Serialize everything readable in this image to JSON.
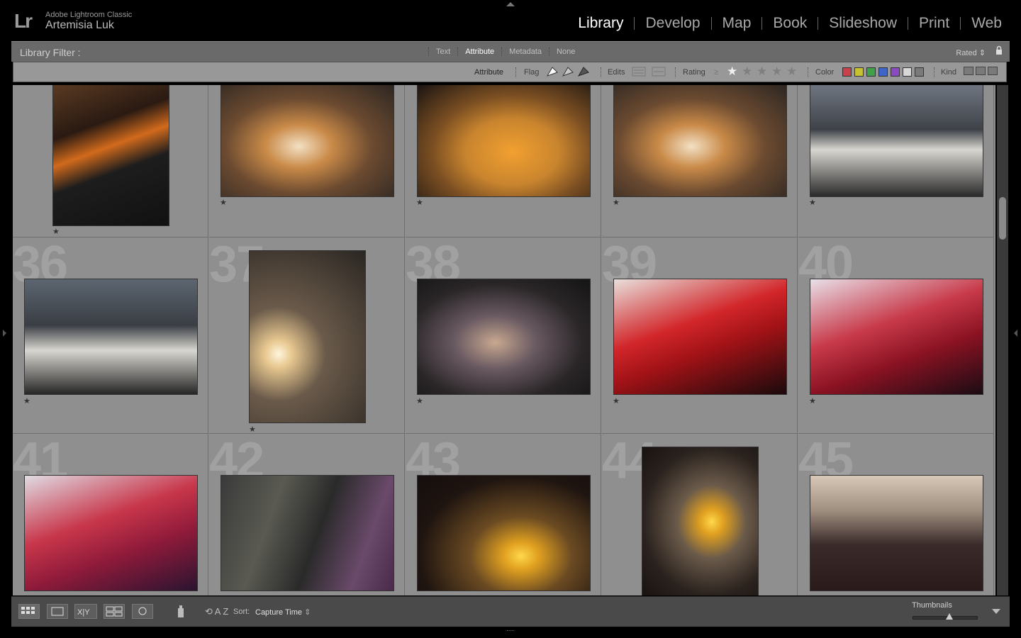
{
  "identity": {
    "logo": "Lr",
    "product": "Adobe Lightroom Classic",
    "user": "Artemisia Luk"
  },
  "modules": [
    {
      "label": "Library",
      "active": true
    },
    {
      "label": "Develop",
      "active": false
    },
    {
      "label": "Map",
      "active": false
    },
    {
      "label": "Book",
      "active": false
    },
    {
      "label": "Slideshow",
      "active": false
    },
    {
      "label": "Print",
      "active": false
    },
    {
      "label": "Web",
      "active": false
    }
  ],
  "filter_bar": {
    "title": "Library Filter :",
    "tabs": [
      {
        "label": "Text",
        "active": false
      },
      {
        "label": "Attribute",
        "active": true
      },
      {
        "label": "Metadata",
        "active": false
      },
      {
        "label": "None",
        "active": false
      }
    ],
    "rated_label": "Rated"
  },
  "attribute_bar": {
    "heading": "Attribute",
    "flag_label": "Flag",
    "edits_label": "Edits",
    "rating_label": "Rating",
    "rating_operator": "≥",
    "rating_value": 1,
    "color_label": "Color",
    "kind_label": "Kind",
    "colors": [
      "#c8414b",
      "#c7c234",
      "#3fa14a",
      "#3f66c7",
      "#8b4bc0",
      "#d8d8d8",
      "#7a7a7a"
    ]
  },
  "grid": {
    "rows": [
      {
        "cells": [
          {
            "number": "",
            "rating": "★"
          },
          {
            "number": "",
            "rating": "★"
          },
          {
            "number": "",
            "rating": "★"
          },
          {
            "number": "",
            "rating": "★"
          },
          {
            "number": "",
            "rating": "★"
          }
        ]
      },
      {
        "cells": [
          {
            "number": "36",
            "rating": "★"
          },
          {
            "number": "37",
            "rating": "★"
          },
          {
            "number": "38",
            "rating": "★"
          },
          {
            "number": "39",
            "rating": "★"
          },
          {
            "number": "40",
            "rating": "★"
          }
        ]
      },
      {
        "cells": [
          {
            "number": "41",
            "rating": ""
          },
          {
            "number": "42",
            "rating": ""
          },
          {
            "number": "43",
            "rating": ""
          },
          {
            "number": "44",
            "rating": ""
          },
          {
            "number": "45",
            "rating": ""
          }
        ]
      }
    ]
  },
  "toolbar": {
    "sort_label": "Sort:",
    "sort_value": "Capture Time",
    "thumbnails_label": "Thumbnails"
  }
}
